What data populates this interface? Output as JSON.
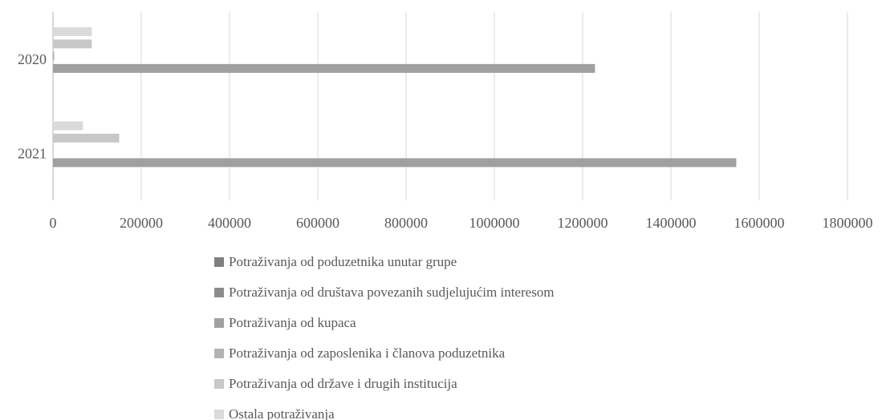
{
  "chart_data": {
    "type": "bar",
    "orientation": "horizontal",
    "categories": [
      "2021",
      "2020"
    ],
    "series": [
      {
        "name": "Potraživanja od poduzetnika unutar grupe",
        "color": "#7f7f7f",
        "values": [
          0,
          0
        ]
      },
      {
        "name": "Potraživanja od društava povezanih sudjelujućim interesom",
        "color": "#8c8c8c",
        "values": [
          0,
          0
        ]
      },
      {
        "name": "Potraživanja od kupaca",
        "color": "#a0a0a0",
        "values": [
          1548000,
          1228000
        ]
      },
      {
        "name": "Potraživanja od zaposlenika i članova poduzetnika",
        "color": "#b3b3b3",
        "values": [
          0,
          3000
        ]
      },
      {
        "name": "Potraživanja od države i drugih institucija",
        "color": "#c8c8c8",
        "values": [
          150000,
          88000
        ]
      },
      {
        "name": "Ostala potraživanja",
        "color": "#dadada",
        "values": [
          68000,
          88000
        ]
      }
    ],
    "xlim": [
      0,
      1800000
    ],
    "xticks": [
      0,
      200000,
      400000,
      600000,
      800000,
      1000000,
      1200000,
      1400000,
      1600000,
      1800000
    ],
    "grid": true
  }
}
